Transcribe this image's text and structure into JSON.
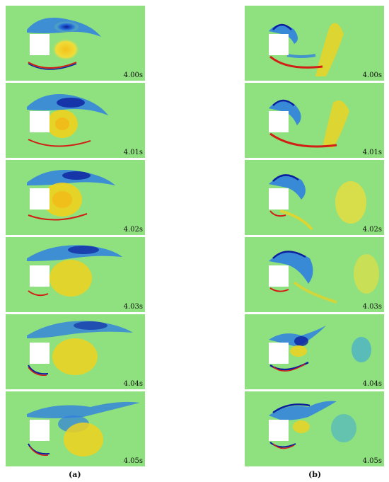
{
  "figure": {
    "panels": [
      {
        "label": "(a)",
        "frames": [
          {
            "time": "4.00s"
          },
          {
            "time": "4.01s"
          },
          {
            "time": "4.02s"
          },
          {
            "time": "4.03s"
          },
          {
            "time": "4.04s"
          },
          {
            "time": "4.05s"
          }
        ]
      },
      {
        "label": "(b)",
        "frames": [
          {
            "time": "4.00s"
          },
          {
            "time": "4.01s"
          },
          {
            "time": "4.02s"
          },
          {
            "time": "4.03s"
          },
          {
            "time": "4.04s"
          },
          {
            "time": "4.05s"
          }
        ]
      }
    ],
    "colors": {
      "background": "#8fe07e",
      "positive_vorticity": "#f0d21e",
      "strong_positive": "#d11f16",
      "negative_vorticity": "#2f7fe0",
      "strong_negative": "#0b1f9e",
      "cylinder": "#ffffff"
    }
  }
}
